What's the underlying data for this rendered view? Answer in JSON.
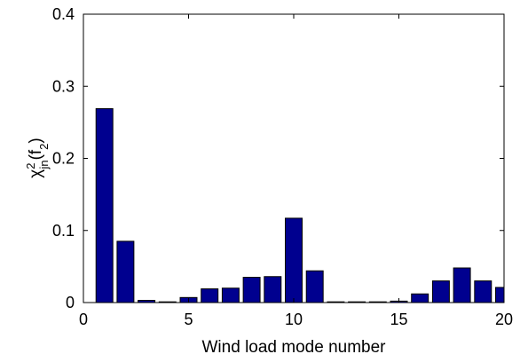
{
  "chart_data": {
    "type": "bar",
    "x": [
      1,
      2,
      3,
      4,
      5,
      6,
      7,
      8,
      9,
      10,
      11,
      12,
      13,
      14,
      15,
      16,
      17,
      18,
      19,
      20
    ],
    "values": [
      0.269,
      0.085,
      0.003,
      0.001,
      0.007,
      0.019,
      0.02,
      0.035,
      0.036,
      0.117,
      0.044,
      0.001,
      0.001,
      0.001,
      0.002,
      0.012,
      0.03,
      0.048,
      0.03,
      0.021
    ],
    "xlabel": "Wind load mode number",
    "ylabel": "χ²jn(f₂)",
    "ylim": [
      0,
      0.4
    ],
    "xlim": [
      0,
      20
    ],
    "xticks": [
      0,
      5,
      10,
      15,
      20
    ],
    "xtick_labels": [
      "0",
      "5",
      "10",
      "15",
      "20"
    ],
    "yticks": [
      0,
      0.1,
      0.2,
      0.3,
      0.4
    ],
    "ytick_labels": [
      "0",
      "0.1",
      "0.2",
      "0.3",
      "0.4"
    ],
    "grid": false,
    "colors": {
      "bar_fill": "#00008f",
      "bar_edge": "#000000"
    }
  }
}
